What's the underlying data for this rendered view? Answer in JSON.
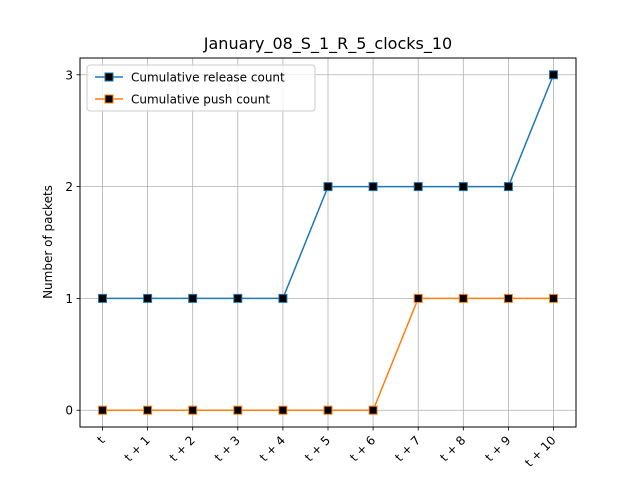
{
  "chart_data": {
    "type": "line",
    "title": "January_08_S_1_R_5_clocks_10",
    "xlabel": "",
    "ylabel": "Number of packets",
    "categories": [
      "t",
      "t + 1",
      "t + 2",
      "t + 3",
      "t + 4",
      "t + 5",
      "t + 6",
      "t + 7",
      "t + 8",
      "t + 9",
      "t + 10"
    ],
    "yticks": [
      "0",
      "1",
      "2",
      "3"
    ],
    "ylim": [
      -0.15,
      3.15
    ],
    "grid": true,
    "legend_position": "top-left",
    "marker": "square",
    "series": [
      {
        "name": "Cumulative release count",
        "color": "#1f77b4",
        "values": [
          1,
          1,
          1,
          1,
          1,
          2,
          2,
          2,
          2,
          2,
          3
        ]
      },
      {
        "name": "Cumulative push count",
        "color": "#ff7f0e",
        "values": [
          0,
          0,
          0,
          0,
          0,
          0,
          0,
          1,
          1,
          1,
          1
        ]
      }
    ]
  }
}
